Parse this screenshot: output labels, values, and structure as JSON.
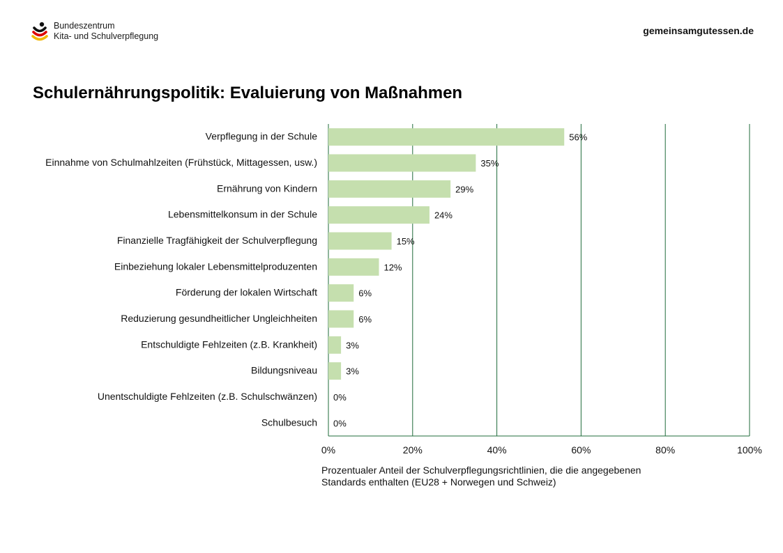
{
  "header": {
    "logo_line1": "Bundeszentrum",
    "logo_line2": "Kita- und Schulverpflegung",
    "website": "gemeinsamgutessen.de"
  },
  "page_title": "Schulernährungspolitik: Evaluierung von Maßnahmen",
  "colors": {
    "bar": "#c5dfae",
    "grid": "#1f6b3a",
    "logo_black": "#111111",
    "logo_red": "#dd0000",
    "logo_gold": "#f2b705"
  },
  "chart_data": {
    "type": "bar",
    "orientation": "horizontal",
    "title": "Schulernährungspolitik: Evaluierung von Maßnahmen",
    "categories": [
      "Verpflegung in der Schule",
      "Einnahme von Schulmahlzeiten (Frühstück, Mittagessen, usw.)",
      "Ernährung von Kindern",
      "Lebensmittelkonsum in der Schule",
      "Finanzielle Tragfähigkeit der Schulverpflegung",
      "Einbeziehung lokaler Lebensmittelproduzenten",
      "Förderung der lokalen Wirtschaft",
      "Reduzierung gesundheitlicher Ungleichheiten",
      "Entschuldigte Fehlzeiten (z.B. Krankheit)",
      "Bildungsniveau",
      "Unentschuldigte Fehlzeiten (z.B. Schulschwänzen)",
      "Schulbesuch"
    ],
    "values": [
      56,
      35,
      29,
      24,
      15,
      12,
      6,
      6,
      3,
      3,
      0,
      0
    ],
    "data_labels": [
      "56%",
      "35%",
      "29%",
      "24%",
      "15%",
      "12%",
      "6%",
      "6%",
      "3%",
      "3%",
      "0%",
      "0%"
    ],
    "xlim": [
      0,
      100
    ],
    "x_ticks": [
      0,
      20,
      40,
      60,
      80,
      100
    ],
    "x_tick_labels": [
      "0%",
      "20%",
      "40%",
      "60%",
      "80%",
      "100%"
    ],
    "xlabel_line1": "Prozentualer Anteil der Schulverpflegungsrichtlinien, die die angegebenen",
    "xlabel_line2": "Standards enthalten (EU28 + Norwegen und Schweiz)",
    "grid": true,
    "legend": "none"
  }
}
